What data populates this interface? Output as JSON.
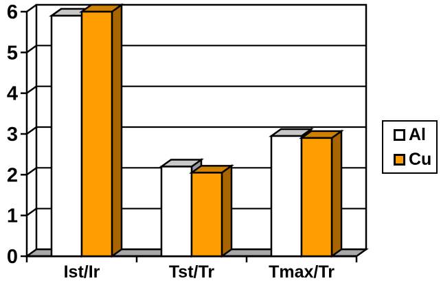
{
  "chart_data": {
    "type": "bar",
    "style": "3d-column",
    "title": "",
    "xlabel": "",
    "ylabel": "",
    "categories": [
      "Ist/Ir",
      "Tst/Tr",
      "Tmax/Tr"
    ],
    "series": [
      {
        "name": "Al",
        "values": [
          5.9,
          2.2,
          2.95
        ],
        "front_color": "#FFFFFF",
        "top_color": "#C8C8C8",
        "side_color": "#9A9A9A"
      },
      {
        "name": "Cu",
        "values": [
          6.0,
          2.05,
          2.9
        ],
        "front_color": "#FF9E00",
        "top_color": "#D08000",
        "side_color": "#A86400"
      }
    ],
    "ylim": [
      0,
      6
    ],
    "yticks": [
      0,
      1,
      2,
      3,
      4,
      5,
      6
    ],
    "grid": true,
    "legend_position": "right"
  },
  "colors": {
    "background": "#FFFFFF",
    "wall": "#FFFFFF",
    "floor": "#A8A8A8",
    "line": "#000000"
  }
}
